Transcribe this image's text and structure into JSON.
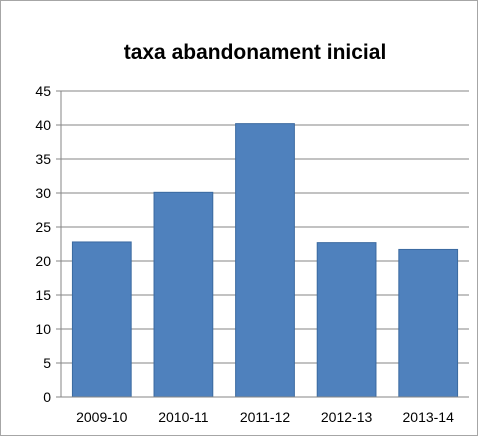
{
  "chart_data": {
    "type": "bar",
    "title": "taxa abandonament inicial",
    "xlabel": "",
    "ylabel": "",
    "categories": [
      "2009-10",
      "2010-11",
      "2011-12",
      "2012-13",
      "2013-14"
    ],
    "values": [
      22.8,
      30.1,
      40.2,
      22.7,
      21.7
    ],
    "ylim": [
      0,
      45
    ],
    "yticks": [
      0,
      5,
      10,
      15,
      20,
      25,
      30,
      35,
      40,
      45
    ],
    "grid": true,
    "legend": "none",
    "colors": {
      "bar": "#4f81bd",
      "bar_edge": "#3b6aa0",
      "grid": "#868686",
      "axis": "#868686"
    }
  }
}
